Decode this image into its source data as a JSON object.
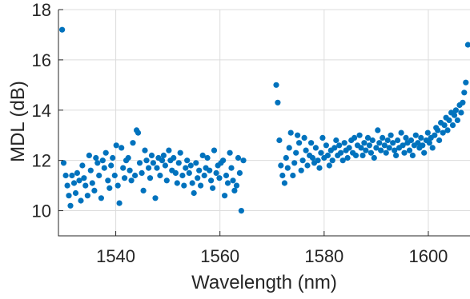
{
  "chart_data": {
    "type": "scatter",
    "title": "",
    "xlabel": "Wavelength (nm)",
    "ylabel": "MDL (dB)",
    "xlim": [
      1529,
      1608
    ],
    "ylim": [
      9,
      18
    ],
    "xticks": [
      1540,
      1560,
      1580,
      1600
    ],
    "xtick_labels": [
      "1540",
      "1560",
      "1580",
      "1600"
    ],
    "yticks": [
      10,
      12,
      14,
      16,
      18
    ],
    "ytick_labels": [
      "10",
      "12",
      "14",
      "16",
      "18"
    ],
    "grid": true,
    "marker_color": "#0072BD",
    "series": [
      {
        "name": "",
        "x": [
          1529.7,
          1530.0,
          1530.4,
          1530.7,
          1531.0,
          1531.3,
          1531.6,
          1532.0,
          1532.3,
          1532.6,
          1533.0,
          1533.3,
          1533.6,
          1533.9,
          1534.2,
          1534.6,
          1534.9,
          1535.2,
          1535.5,
          1535.9,
          1536.2,
          1536.5,
          1536.8,
          1537.2,
          1537.5,
          1537.8,
          1538.1,
          1538.5,
          1538.8,
          1539.1,
          1539.4,
          1539.8,
          1540.1,
          1540.4,
          1540.7,
          1541.1,
          1541.4,
          1541.7,
          1542.0,
          1542.4,
          1542.7,
          1543.0,
          1543.3,
          1543.7,
          1544.0,
          1544.3,
          1544.6,
          1545.0,
          1545.3,
          1545.6,
          1545.9,
          1546.3,
          1546.6,
          1546.9,
          1547.2,
          1547.6,
          1547.9,
          1548.2,
          1548.5,
          1548.9,
          1549.2,
          1549.5,
          1549.8,
          1550.2,
          1550.5,
          1550.8,
          1551.1,
          1551.5,
          1551.8,
          1552.1,
          1552.4,
          1552.8,
          1553.1,
          1553.4,
          1553.7,
          1554.1,
          1554.4,
          1554.7,
          1555.0,
          1555.4,
          1555.7,
          1556.0,
          1556.3,
          1556.7,
          1557.0,
          1557.3,
          1557.6,
          1558.0,
          1558.3,
          1558.6,
          1558.9,
          1559.3,
          1559.6,
          1559.9,
          1560.2,
          1560.6,
          1560.9,
          1561.2,
          1561.5,
          1561.9,
          1562.2,
          1562.5,
          1562.8,
          1563.2,
          1563.5,
          1563.8,
          1564.1,
          1564.5,
          1570.8,
          1571.1,
          1571.4,
          1571.7,
          1572.0,
          1572.4,
          1572.7,
          1573.0,
          1573.3,
          1573.6,
          1574.0,
          1574.3,
          1574.6,
          1574.9,
          1575.2,
          1575.6,
          1575.9,
          1576.2,
          1576.5,
          1576.8,
          1577.2,
          1577.5,
          1577.8,
          1578.1,
          1578.4,
          1578.8,
          1579.1,
          1579.4,
          1579.7,
          1580.0,
          1580.4,
          1580.7,
          1581.0,
          1581.3,
          1581.6,
          1582.0,
          1582.3,
          1582.6,
          1582.9,
          1583.2,
          1583.6,
          1583.9,
          1584.2,
          1584.5,
          1584.8,
          1585.2,
          1585.5,
          1585.8,
          1586.1,
          1586.4,
          1586.8,
          1587.1,
          1587.4,
          1587.7,
          1588.0,
          1588.4,
          1588.7,
          1589.0,
          1589.3,
          1589.6,
          1590.0,
          1590.3,
          1590.6,
          1590.9,
          1591.2,
          1591.6,
          1591.9,
          1592.2,
          1592.5,
          1592.8,
          1593.2,
          1593.5,
          1593.8,
          1594.1,
          1594.4,
          1594.8,
          1595.1,
          1595.4,
          1595.7,
          1596.0,
          1596.4,
          1596.7,
          1597.0,
          1597.3,
          1597.6,
          1598.0,
          1598.3,
          1598.6,
          1598.9,
          1599.2,
          1599.6,
          1599.9,
          1600.2,
          1600.5,
          1600.8,
          1601.2,
          1601.5,
          1601.8,
          1602.1,
          1602.4,
          1602.8,
          1603.1,
          1603.4,
          1603.7,
          1604.0,
          1604.4,
          1604.7,
          1605.0,
          1605.3,
          1605.6,
          1606.0,
          1606.3,
          1606.6,
          1606.9,
          1607.2,
          1607.6
        ],
        "y": [
          17.2,
          11.9,
          11.4,
          11.0,
          10.6,
          10.2,
          11.4,
          11.1,
          10.7,
          11.5,
          11.2,
          10.4,
          11.8,
          11.3,
          11.0,
          10.6,
          12.2,
          11.6,
          11.1,
          10.8,
          12.1,
          11.9,
          11.4,
          10.5,
          12.0,
          11.7,
          12.3,
          11.2,
          10.9,
          11.8,
          12.1,
          11.4,
          12.6,
          11.0,
          10.3,
          12.5,
          11.7,
          11.3,
          12.0,
          12.1,
          11.6,
          11.2,
          12.7,
          11.4,
          13.2,
          13.1,
          11.9,
          11.5,
          10.8,
          12.4,
          12.0,
          11.7,
          11.3,
          12.2,
          11.9,
          10.5,
          11.7,
          12.1,
          11.4,
          12.0,
          12.2,
          11.8,
          11.2,
          12.4,
          12.0,
          11.6,
          12.1,
          11.5,
          11.1,
          11.9,
          12.3,
          11.4,
          11.0,
          11.7,
          12.0,
          11.5,
          11.8,
          11.1,
          10.7,
          11.9,
          11.3,
          11.6,
          11.0,
          12.2,
          11.4,
          11.7,
          12.1,
          11.6,
          11.2,
          10.9,
          12.4,
          11.5,
          11.8,
          11.3,
          11.9,
          12.0,
          10.6,
          11.4,
          11.1,
          12.3,
          11.7,
          11.2,
          10.8,
          11.0,
          12.1,
          11.5,
          10.0,
          12.0,
          15.0,
          14.3,
          12.8,
          11.8,
          11.4,
          11.1,
          12.1,
          11.7,
          12.5,
          13.1,
          11.4,
          11.9,
          12.3,
          13.0,
          12.7,
          11.6,
          12.0,
          12.9,
          12.4,
          11.8,
          12.2,
          12.7,
          12.1,
          11.9,
          12.5,
          12.0,
          11.7,
          12.3,
          12.9,
          12.1,
          12.6,
          12.2,
          11.8,
          12.4,
          12.0,
          12.5,
          12.8,
          12.2,
          12.6,
          12.3,
          12.0,
          12.7,
          12.4,
          12.1,
          12.5,
          12.8,
          12.3,
          12.9,
          12.2,
          12.6,
          13.0,
          12.5,
          12.2,
          12.7,
          12.4,
          12.9,
          12.6,
          12.3,
          12.8,
          12.1,
          12.5,
          13.2,
          12.7,
          12.4,
          12.9,
          12.6,
          12.3,
          12.8,
          12.5,
          13.0,
          12.7,
          12.4,
          12.2,
          12.8,
          12.5,
          13.1,
          12.6,
          12.3,
          12.9,
          12.7,
          12.4,
          12.8,
          12.2,
          12.6,
          13.0,
          12.7,
          12.5,
          12.9,
          12.6,
          12.3,
          12.8,
          13.1,
          12.7,
          12.9,
          12.5,
          13.0,
          13.3,
          13.2,
          12.8,
          13.5,
          13.1,
          13.4,
          13.7,
          13.2,
          13.6,
          13.9,
          13.4,
          13.8,
          14.0,
          13.6,
          14.2,
          13.9,
          14.3,
          14.7,
          15.1,
          16.6
        ]
      }
    ]
  }
}
